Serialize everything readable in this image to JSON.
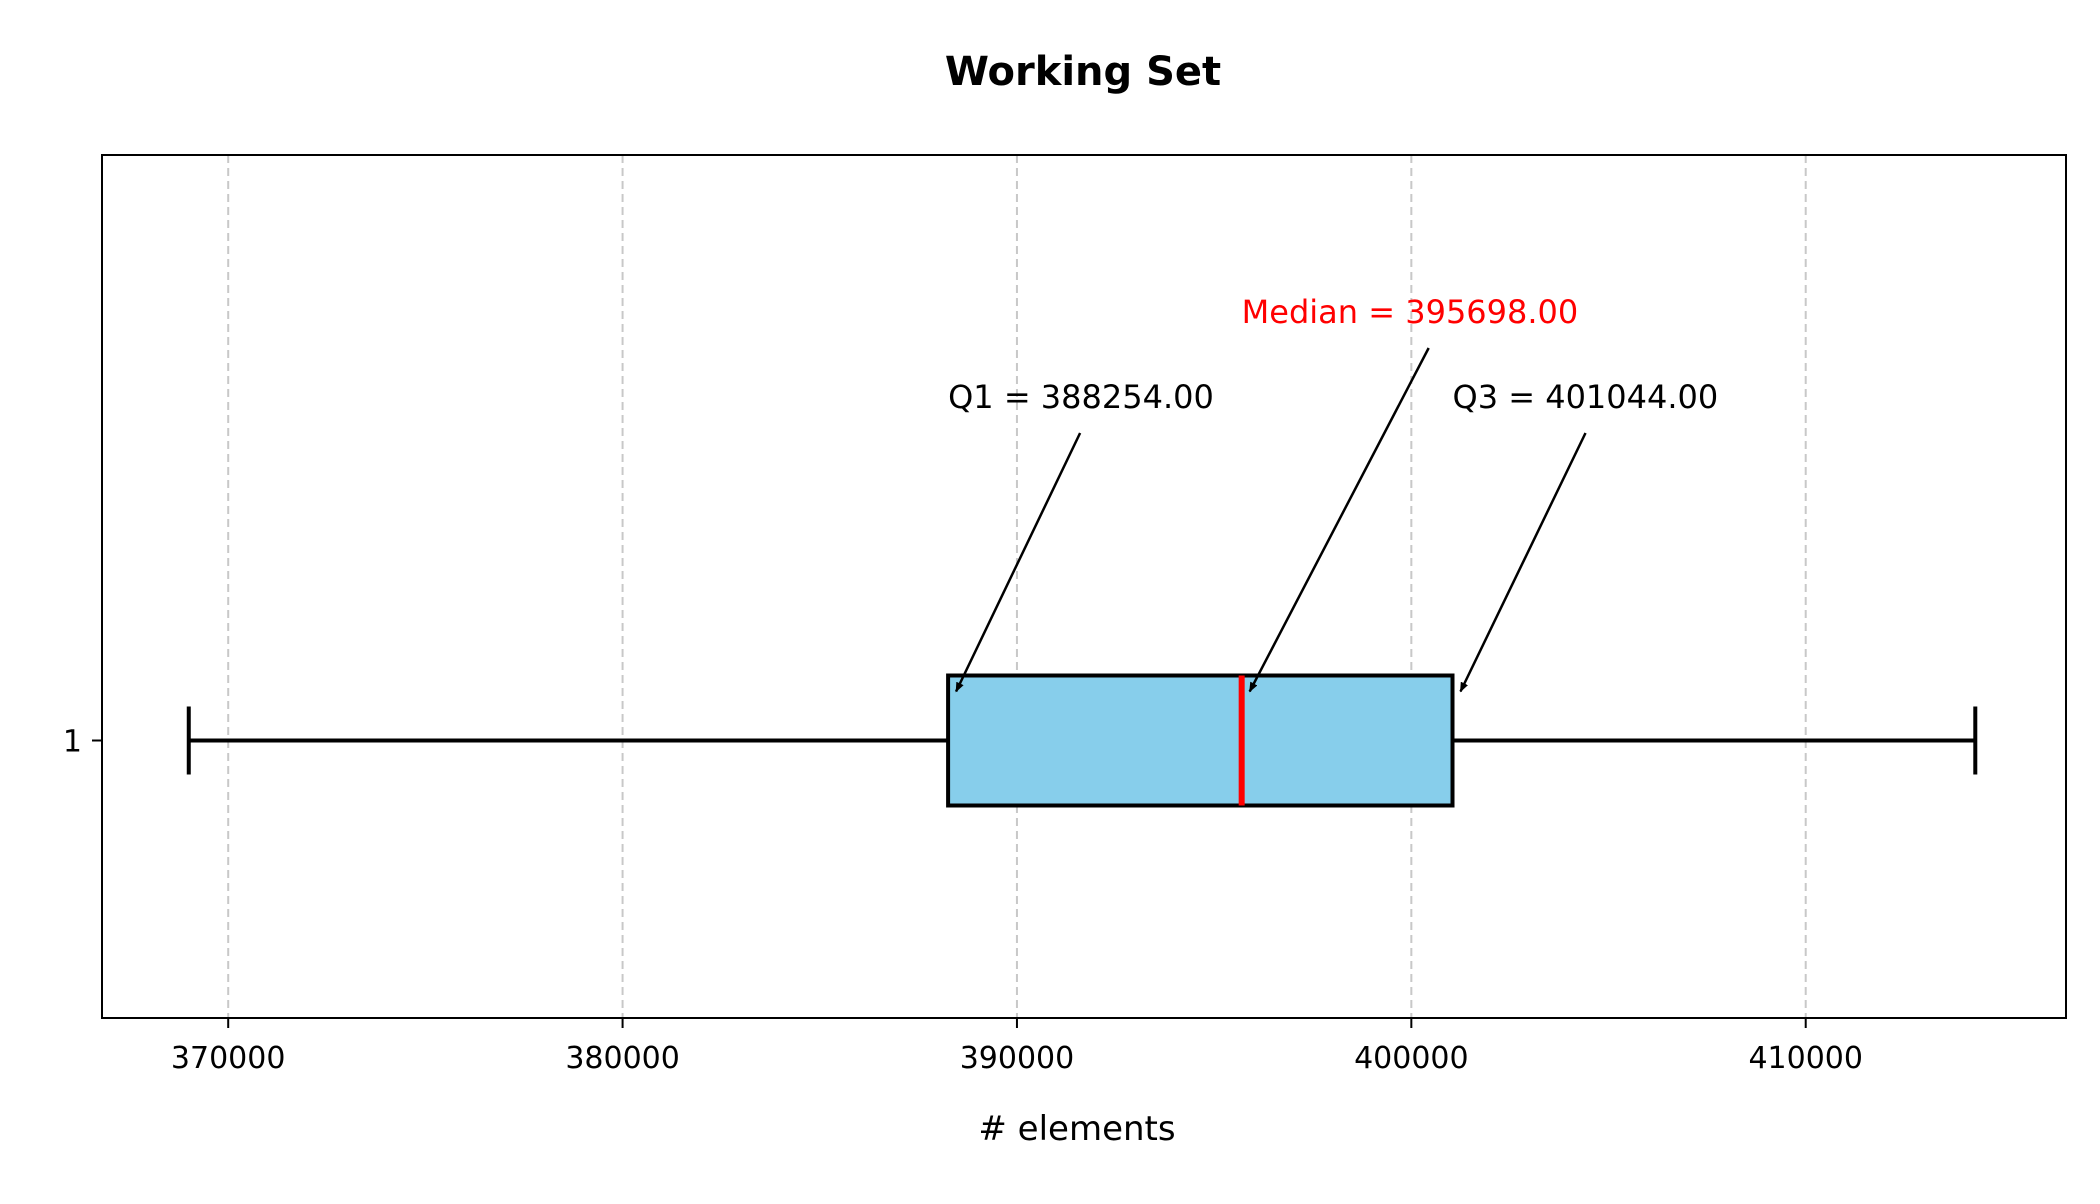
{
  "chart_data": {
    "type": "boxplot",
    "title": "Working Set",
    "xlabel": "# elements",
    "ylabel": "",
    "xlim": [
      366800,
      416600
    ],
    "x_ticks": [
      370000,
      380000,
      390000,
      400000,
      410000
    ],
    "x_tick_labels": [
      "370000",
      "380000",
      "390000",
      "400000",
      "410000"
    ],
    "y_ticks": [
      1
    ],
    "y_tick_labels": [
      "1"
    ],
    "grid": "x-axis dashed",
    "orientation": "horizontal",
    "boxes": [
      {
        "position": 1,
        "whisker_low": 369000,
        "q1": 388254,
        "median": 395698,
        "q3": 401044,
        "whisker_high": 414300
      }
    ],
    "annotations": [
      {
        "label": "Q1 = 388254.00",
        "target": "q1",
        "color": "#000000"
      },
      {
        "label": "Median = 395698.00",
        "target": "median",
        "color": "#ff0000"
      },
      {
        "label": "Q3 = 401044.00",
        "target": "q3",
        "color": "#000000"
      }
    ],
    "colors": {
      "box_fill": "#87ceeb",
      "box_edge": "#000000",
      "median_line": "#ff0000",
      "whisker": "#000000",
      "grid": "#c8c8c8"
    }
  }
}
